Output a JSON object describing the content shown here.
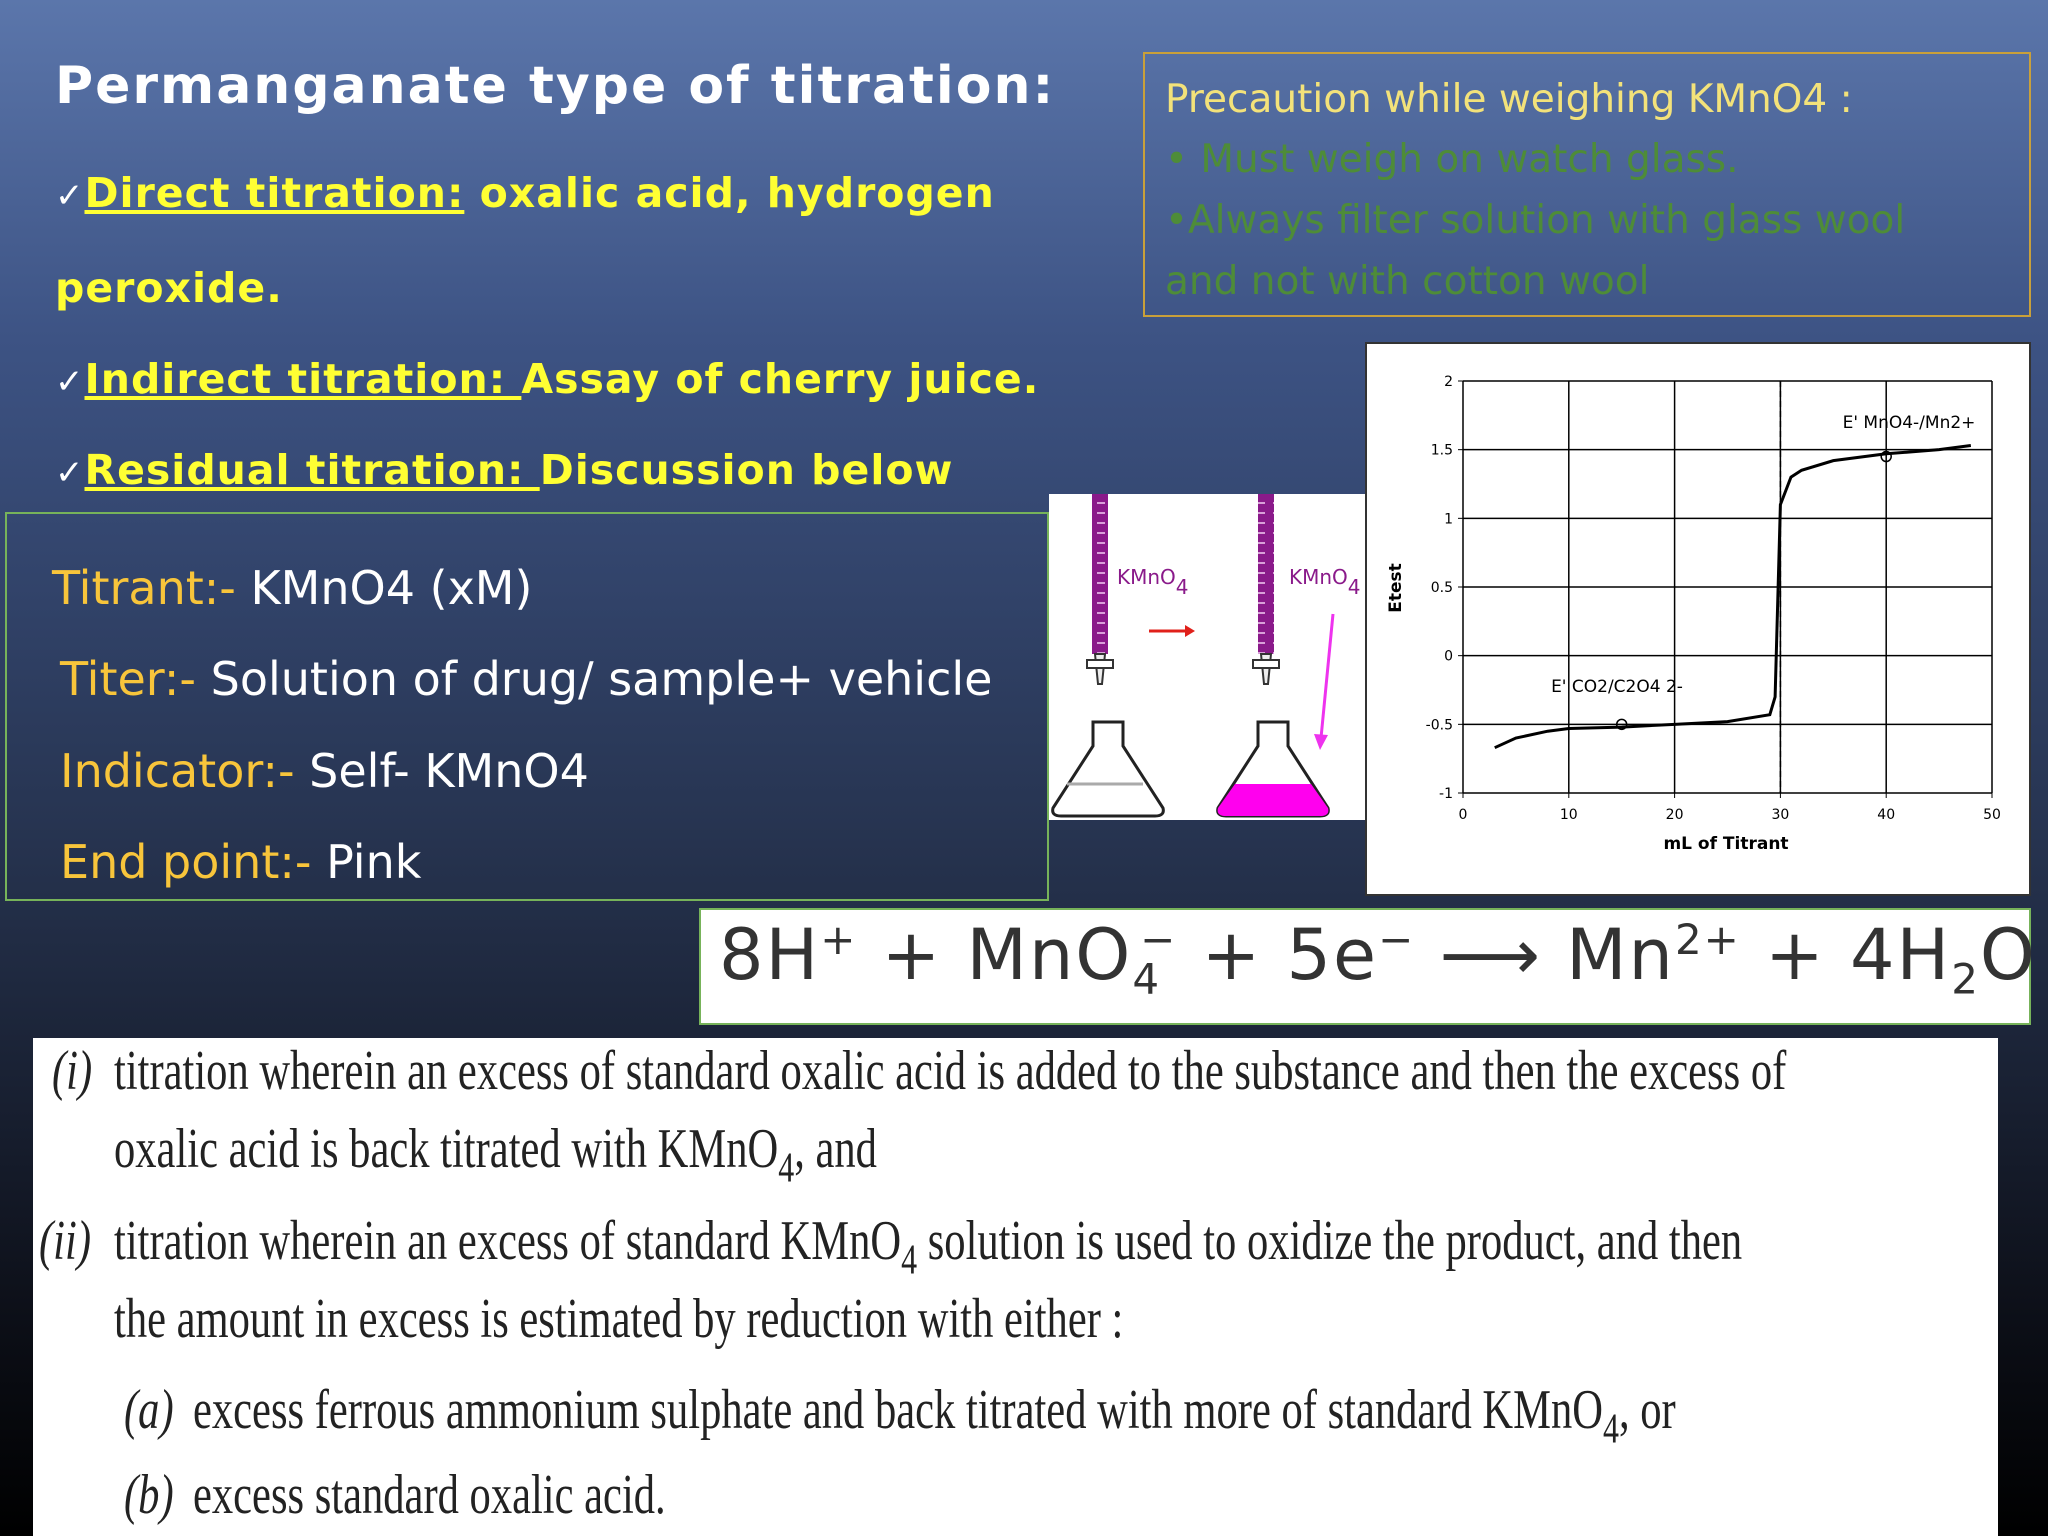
{
  "title": "Permanganate type of titration:",
  "checkmark": "✓",
  "methods": [
    {
      "label": "Direct titration:",
      "text": " oxalic acid, hydrogen peroxide."
    },
    {
      "label": "Indirect titration: ",
      "text": "Assay of cherry juice."
    },
    {
      "label": "Residual titration: ",
      "text": "Discussion below"
    }
  ],
  "precaution": {
    "heading": "Precaution while weighing KMnO4 :",
    "bullets": [
      "• Must weigh on watch glass.",
      "•Always filter solution with glass wool",
      "and not with cotton wool"
    ]
  },
  "details": [
    {
      "label": "Titrant:-",
      "value": " KMnO4 (xM)"
    },
    {
      "label": "Titer:-",
      "value": " Solution of drug/ sample+ vehicle"
    },
    {
      "label": "Indicator:-",
      "value": " Self- KMnO4"
    },
    {
      "label": "End point:-",
      "value": "  Pink"
    }
  ],
  "illustration": {
    "reagent": "KMnO",
    "reagent_sub": "4"
  },
  "equation": [
    "8H",
    "+",
    " + MnO",
    "4",
    "−",
    " + 5e",
    "−",
    " ⟶ Mn",
    "2+",
    " + 4H",
    "2",
    "O"
  ],
  "procedures": [
    {
      "marker": "(i)",
      "lines": [
        [
          "titration wherein an excess of standard oxalic acid is added to the substance and then the excess of"
        ],
        [
          "oxalic acid is back titrated with KMnO",
          "4",
          ", and"
        ]
      ]
    },
    {
      "marker": "(ii)",
      "lines": [
        [
          "titration wherein an excess of standard KMnO",
          "4",
          " solution is used to oxidize the product, and then"
        ],
        [
          "the amount in excess is estimated by reduction with either :"
        ]
      ]
    },
    {
      "marker": "(a)",
      "lines": [
        [
          "excess ferrous ammonium sulphate and back titrated with more of standard KMnO",
          "4",
          ", or"
        ]
      ]
    },
    {
      "marker": "(b)",
      "lines": [
        [
          "excess standard oxalic acid."
        ]
      ]
    }
  ],
  "chart_data": {
    "type": "line",
    "x_label": "mL of Titrant",
    "y_label": "Etest",
    "annotations": [
      "E' MnO4-/Mn2+",
      "E' CO2/C2O4 2-"
    ],
    "x": [
      3,
      5,
      8,
      10,
      15,
      20,
      25,
      29,
      29.5,
      30,
      30.5,
      31,
      32,
      35,
      40,
      45,
      48
    ],
    "values": [
      -0.67,
      -0.6,
      -0.55,
      -0.53,
      -0.52,
      -0.5,
      -0.48,
      -0.43,
      -0.3,
      1.1,
      1.2,
      1.3,
      1.35,
      1.42,
      1.47,
      1.5,
      1.53
    ],
    "color": "#000000",
    "equivalence_x": 30,
    "highlight_points": {
      "x": [
        15,
        40
      ],
      "y": [
        -0.5,
        1.45
      ]
    },
    "xlim": [
      0,
      50
    ],
    "xticks": [
      0,
      10,
      20,
      30,
      40,
      50
    ],
    "ylim": [
      -1,
      2
    ],
    "yticks": [
      -1,
      -0.5,
      0,
      0.5,
      1,
      1.5,
      2
    ],
    "grid": true
  }
}
